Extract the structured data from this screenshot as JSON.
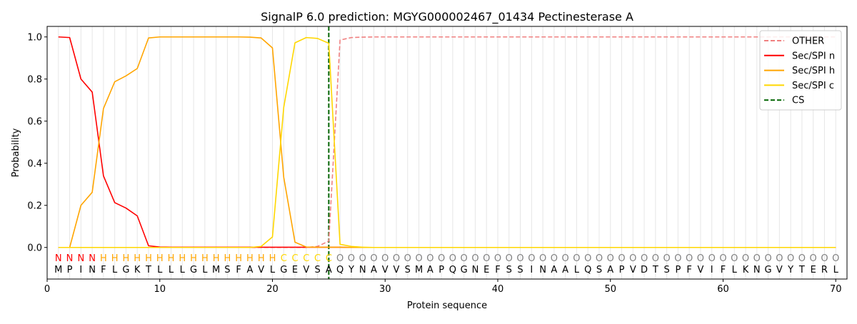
{
  "chart_data": {
    "type": "line",
    "title": "SignalP 6.0 prediction: MGYG000002467_01434 Pectinesterase A",
    "xlabel": "Protein sequence",
    "ylabel": "Probability",
    "xlim": [
      0,
      71
    ],
    "ylim": [
      -0.15,
      1.05
    ],
    "xticks": [
      0,
      10,
      20,
      30,
      40,
      50,
      60,
      70
    ],
    "yticks": [
      0.0,
      0.2,
      0.4,
      0.6,
      0.8,
      1.0
    ],
    "xtick_labels": [
      "0",
      "10",
      "20",
      "30",
      "40",
      "50",
      "60",
      "70"
    ],
    "ytick_labels": [
      "0.0",
      "0.2",
      "0.4",
      "0.6",
      "0.8",
      "1.0"
    ],
    "grid": "vertical lines at each residue",
    "legend_position": "top-right",
    "sequence": [
      "M",
      "P",
      "I",
      "N",
      "F",
      "L",
      "G",
      "K",
      "T",
      "L",
      "L",
      "L",
      "G",
      "L",
      "M",
      "S",
      "F",
      "A",
      "V",
      "L",
      "G",
      "E",
      "V",
      "S",
      "A",
      "Q",
      "Y",
      "N",
      "A",
      "V",
      "V",
      "S",
      "M",
      "A",
      "P",
      "Q",
      "G",
      "N",
      "E",
      "F",
      "S",
      "S",
      "I",
      "N",
      "A",
      "A",
      "L",
      "Q",
      "S",
      "A",
      "P",
      "V",
      "D",
      "T",
      "S",
      "P",
      "F",
      "V",
      "I",
      "F",
      "L",
      "K",
      "N",
      "G",
      "V",
      "Y",
      "T",
      "E",
      "R",
      "L"
    ],
    "labels": [
      "N",
      "N",
      "N",
      "N",
      "H",
      "H",
      "H",
      "H",
      "H",
      "H",
      "H",
      "H",
      "H",
      "H",
      "H",
      "H",
      "H",
      "H",
      "H",
      "H",
      "C",
      "C",
      "C",
      "C",
      "C",
      "O",
      "O",
      "O",
      "O",
      "O",
      "O",
      "O",
      "O",
      "O",
      "O",
      "O",
      "O",
      "O",
      "O",
      "O",
      "O",
      "O",
      "O",
      "O",
      "O",
      "O",
      "O",
      "O",
      "O",
      "O",
      "O",
      "O",
      "O",
      "O",
      "O",
      "O",
      "O",
      "O",
      "O",
      "O",
      "O",
      "O",
      "O",
      "O",
      "O",
      "O",
      "O",
      "O",
      "O",
      "O"
    ],
    "label_colors": {
      "N": "#ff0000",
      "H": "#ffa500",
      "C": "#ffd700",
      "O": "#808080"
    },
    "cleavage_site": 25,
    "series": [
      {
        "name": "OTHER",
        "color": "#f08080",
        "dash": "dashed",
        "values": [
          0,
          0,
          0,
          0,
          0,
          0,
          0,
          0,
          0,
          0,
          0,
          0,
          0,
          0,
          0,
          0,
          0,
          0,
          0,
          0,
          0,
          0,
          0,
          0.005,
          0.03,
          0.985,
          0.997,
          0.999,
          1,
          1,
          1,
          1,
          1,
          1,
          1,
          1,
          1,
          1,
          1,
          1,
          1,
          1,
          1,
          1,
          1,
          1,
          1,
          1,
          1,
          1,
          1,
          1,
          1,
          1,
          1,
          1,
          1,
          1,
          1,
          1,
          1,
          1,
          1,
          1,
          1,
          1,
          1,
          1,
          1,
          1
        ]
      },
      {
        "name": "Sec/SPI n",
        "color": "#ff0000",
        "dash": "solid",
        "values": [
          1.0,
          0.997,
          0.8,
          0.738,
          0.34,
          0.213,
          0.187,
          0.15,
          0.008,
          0.002,
          0.001,
          0.001,
          0.001,
          0.001,
          0.001,
          0.001,
          0.001,
          0.001,
          0.001,
          0.001,
          0.001,
          0.001,
          0.001,
          0.001,
          0.001,
          0.001,
          0,
          0,
          0,
          0,
          0,
          0,
          0,
          0,
          0,
          0,
          0,
          0,
          0,
          0,
          0,
          0,
          0,
          0,
          0,
          0,
          0,
          0,
          0,
          0,
          0,
          0,
          0,
          0,
          0,
          0,
          0,
          0,
          0,
          0,
          0,
          0,
          0,
          0,
          0,
          0,
          0,
          0,
          0,
          0
        ]
      },
      {
        "name": "Sec/SPI h",
        "color": "#ffa500",
        "dash": "solid",
        "values": [
          0,
          0,
          0.2,
          0.262,
          0.66,
          0.787,
          0.815,
          0.85,
          0.995,
          1,
          1,
          1,
          1,
          1,
          1,
          1,
          1,
          0.999,
          0.995,
          0.948,
          0.334,
          0.025,
          0.002,
          0.001,
          0.001,
          0.001,
          0,
          0,
          0,
          0,
          0,
          0,
          0,
          0,
          0,
          0,
          0,
          0,
          0,
          0,
          0,
          0,
          0,
          0,
          0,
          0,
          0,
          0,
          0,
          0,
          0,
          0,
          0,
          0,
          0,
          0,
          0,
          0,
          0,
          0,
          0,
          0,
          0,
          0,
          0,
          0,
          0,
          0,
          0,
          0
        ]
      },
      {
        "name": "Sec/SPI c",
        "color": "#ffd700",
        "dash": "solid",
        "values": [
          0,
          0,
          0,
          0,
          0,
          0,
          0,
          0,
          0,
          0,
          0,
          0,
          0,
          0,
          0,
          0,
          0,
          0,
          0.005,
          0.05,
          0.665,
          0.972,
          0.997,
          0.993,
          0.97,
          0.015,
          0.005,
          0.001,
          0,
          0,
          0,
          0,
          0,
          0,
          0,
          0,
          0,
          0,
          0,
          0,
          0,
          0,
          0,
          0,
          0,
          0,
          0,
          0,
          0,
          0,
          0,
          0,
          0,
          0,
          0,
          0,
          0,
          0,
          0,
          0,
          0,
          0,
          0,
          0,
          0,
          0,
          0,
          0,
          0,
          0
        ]
      }
    ],
    "legend": [
      {
        "name": "OTHER",
        "color": "#f08080",
        "style": "dashed"
      },
      {
        "name": "Sec/SPI n",
        "color": "#ff0000",
        "style": "solid"
      },
      {
        "name": "Sec/SPI h",
        "color": "#ffa500",
        "style": "solid"
      },
      {
        "name": "Sec/SPI c",
        "color": "#ffd700",
        "style": "solid"
      },
      {
        "name": "CS",
        "color": "#006400",
        "style": "dashed"
      }
    ]
  }
}
